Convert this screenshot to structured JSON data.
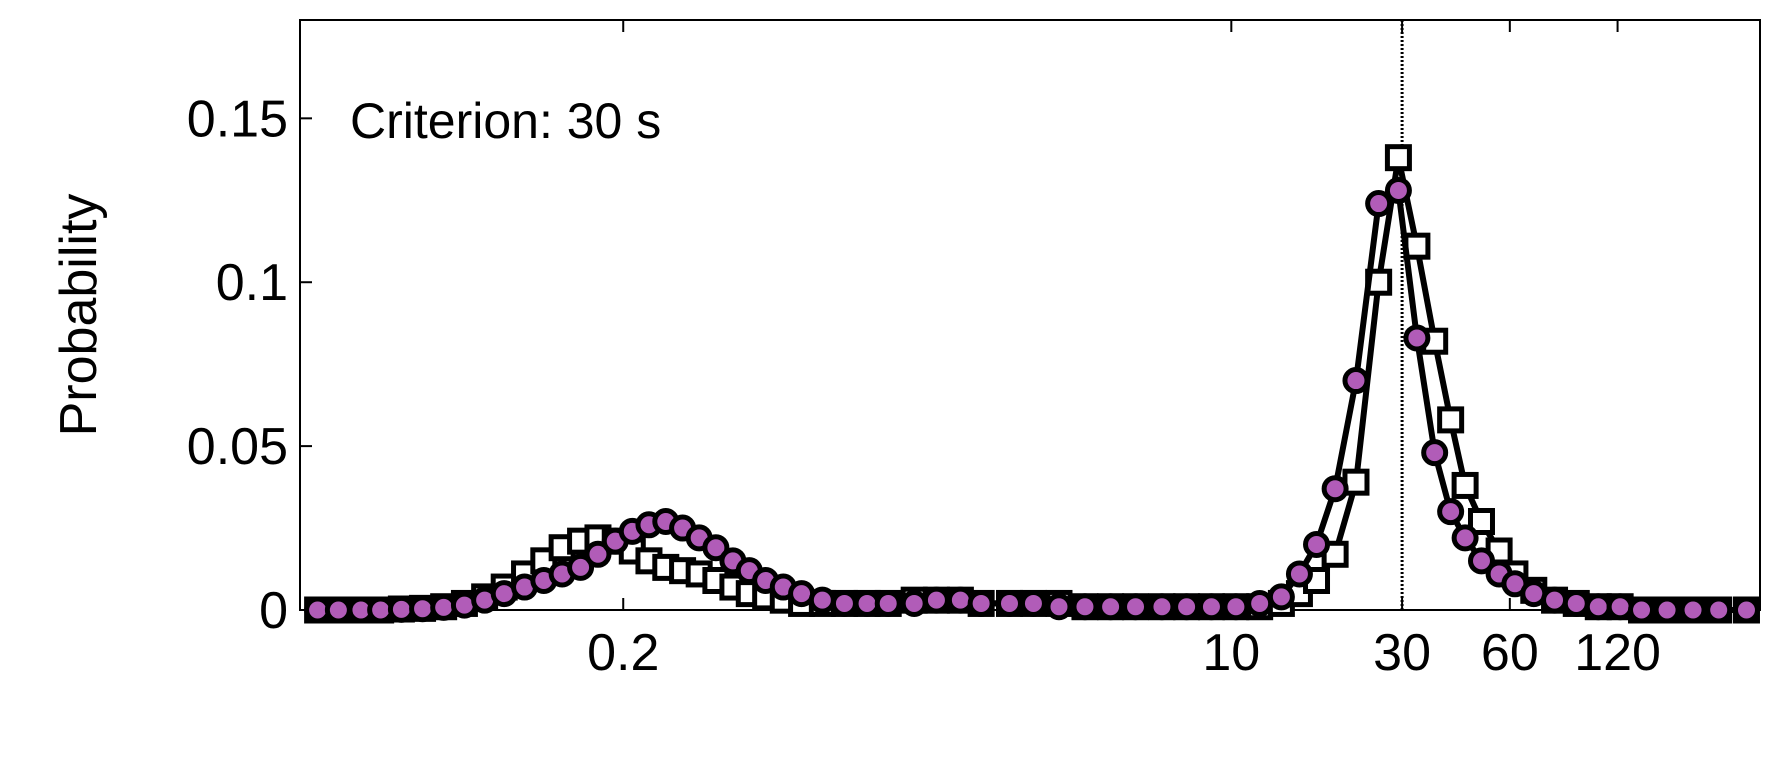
{
  "chart_data": {
    "type": "line",
    "title": "",
    "xlabel": "",
    "ylabel": "Probability",
    "annotation": "Criterion: 30 s",
    "x_scale": "log",
    "xlim": [
      0.025,
      300
    ],
    "ylim": [
      0,
      0.18
    ],
    "x_ticks": [
      {
        "value": 0.2,
        "label": "0.2"
      },
      {
        "value": 10,
        "label": "10"
      },
      {
        "value": 30,
        "label": "30"
      },
      {
        "value": 60,
        "label": "60"
      },
      {
        "value": 120,
        "label": "120"
      }
    ],
    "y_ticks": [
      {
        "value": 0,
        "label": "0"
      },
      {
        "value": 0.05,
        "label": "0.05"
      },
      {
        "value": 0.1,
        "label": "0.1"
      },
      {
        "value": 0.15,
        "label": "0.15"
      }
    ],
    "criterion_line": {
      "x": 30,
      "style": "dotted"
    },
    "grid": false,
    "legend": "none",
    "series": [
      {
        "marker": "square",
        "marker_fill": "#ffffff",
        "line_color": "#000000",
        "points": [
          [
            0.028,
            0.0
          ],
          [
            0.032,
            0.0
          ],
          [
            0.037,
            0.0
          ],
          [
            0.042,
            0.0
          ],
          [
            0.048,
            0.0003
          ],
          [
            0.055,
            0.0005
          ],
          [
            0.063,
            0.001
          ],
          [
            0.072,
            0.002
          ],
          [
            0.082,
            0.004
          ],
          [
            0.093,
            0.007
          ],
          [
            0.106,
            0.011
          ],
          [
            0.12,
            0.015
          ],
          [
            0.135,
            0.019
          ],
          [
            0.152,
            0.021
          ],
          [
            0.17,
            0.022
          ],
          [
            0.19,
            0.021
          ],
          [
            0.212,
            0.018
          ],
          [
            0.236,
            0.015
          ],
          [
            0.263,
            0.013
          ],
          [
            0.293,
            0.012
          ],
          [
            0.326,
            0.011
          ],
          [
            0.363,
            0.009
          ],
          [
            0.405,
            0.007
          ],
          [
            0.45,
            0.005
          ],
          [
            0.5,
            0.004
          ],
          [
            0.56,
            0.003
          ],
          [
            0.63,
            0.002
          ],
          [
            0.72,
            0.002
          ],
          [
            0.83,
            0.002
          ],
          [
            0.96,
            0.002
          ],
          [
            1.1,
            0.002
          ],
          [
            1.3,
            0.003
          ],
          [
            1.5,
            0.003
          ],
          [
            1.75,
            0.003
          ],
          [
            2.0,
            0.002
          ],
          [
            2.4,
            0.002
          ],
          [
            2.8,
            0.002
          ],
          [
            3.3,
            0.002
          ],
          [
            3.9,
            0.001
          ],
          [
            4.6,
            0.001
          ],
          [
            5.4,
            0.001
          ],
          [
            6.4,
            0.001
          ],
          [
            7.5,
            0.001
          ],
          [
            8.8,
            0.001
          ],
          [
            10.3,
            0.001
          ],
          [
            12.0,
            0.001
          ],
          [
            13.8,
            0.002
          ],
          [
            15.5,
            0.005
          ],
          [
            17.3,
            0.009
          ],
          [
            19.5,
            0.017
          ],
          [
            22.3,
            0.039
          ],
          [
            25.8,
            0.1
          ],
          [
            29.3,
            0.138
          ],
          [
            33.0,
            0.111
          ],
          [
            37.0,
            0.082
          ],
          [
            41.0,
            0.058
          ],
          [
            45.0,
            0.038
          ],
          [
            50.0,
            0.027
          ],
          [
            56.0,
            0.018
          ],
          [
            62.0,
            0.011
          ],
          [
            70.0,
            0.006
          ],
          [
            80.0,
            0.003
          ],
          [
            92.0,
            0.002
          ],
          [
            106.0,
            0.001
          ],
          [
            122.0,
            0.001
          ],
          [
            140.0,
            0.0
          ],
          [
            165.0,
            0.0
          ],
          [
            195.0,
            0.0
          ],
          [
            230.0,
            0.0
          ],
          [
            275.0,
            0.0
          ]
        ]
      },
      {
        "marker": "circle",
        "marker_fill": "#b15cb8",
        "line_color": "#000000",
        "points": [
          [
            0.028,
            0.0
          ],
          [
            0.032,
            0.0
          ],
          [
            0.037,
            0.0
          ],
          [
            0.042,
            0.0
          ],
          [
            0.048,
            0.0002
          ],
          [
            0.055,
            0.0004
          ],
          [
            0.063,
            0.0008
          ],
          [
            0.072,
            0.0015
          ],
          [
            0.082,
            0.003
          ],
          [
            0.093,
            0.005
          ],
          [
            0.106,
            0.007
          ],
          [
            0.12,
            0.009
          ],
          [
            0.135,
            0.011
          ],
          [
            0.152,
            0.013
          ],
          [
            0.17,
            0.017
          ],
          [
            0.19,
            0.021
          ],
          [
            0.212,
            0.024
          ],
          [
            0.236,
            0.026
          ],
          [
            0.263,
            0.027
          ],
          [
            0.293,
            0.025
          ],
          [
            0.326,
            0.022
          ],
          [
            0.363,
            0.019
          ],
          [
            0.405,
            0.015
          ],
          [
            0.45,
            0.012
          ],
          [
            0.5,
            0.009
          ],
          [
            0.56,
            0.007
          ],
          [
            0.63,
            0.005
          ],
          [
            0.72,
            0.003
          ],
          [
            0.83,
            0.002
          ],
          [
            0.96,
            0.002
          ],
          [
            1.1,
            0.002
          ],
          [
            1.3,
            0.002
          ],
          [
            1.5,
            0.003
          ],
          [
            1.75,
            0.003
          ],
          [
            2.0,
            0.002
          ],
          [
            2.4,
            0.002
          ],
          [
            2.8,
            0.002
          ],
          [
            3.3,
            0.001
          ],
          [
            3.9,
            0.001
          ],
          [
            4.6,
            0.001
          ],
          [
            5.4,
            0.001
          ],
          [
            6.4,
            0.001
          ],
          [
            7.5,
            0.001
          ],
          [
            8.8,
            0.001
          ],
          [
            10.3,
            0.001
          ],
          [
            12.0,
            0.002
          ],
          [
            13.8,
            0.004
          ],
          [
            15.5,
            0.011
          ],
          [
            17.3,
            0.02
          ],
          [
            19.5,
            0.037
          ],
          [
            22.3,
            0.07
          ],
          [
            25.8,
            0.124
          ],
          [
            29.3,
            0.128
          ],
          [
            33.0,
            0.083
          ],
          [
            37.0,
            0.048
          ],
          [
            41.0,
            0.03
          ],
          [
            45.0,
            0.022
          ],
          [
            50.0,
            0.015
          ],
          [
            56.0,
            0.011
          ],
          [
            62.0,
            0.008
          ],
          [
            70.0,
            0.005
          ],
          [
            80.0,
            0.003
          ],
          [
            92.0,
            0.002
          ],
          [
            106.0,
            0.001
          ],
          [
            122.0,
            0.001
          ],
          [
            140.0,
            0.0
          ],
          [
            165.0,
            0.0
          ],
          [
            195.0,
            0.0
          ],
          [
            230.0,
            0.0
          ],
          [
            275.0,
            0.0
          ]
        ]
      }
    ]
  }
}
